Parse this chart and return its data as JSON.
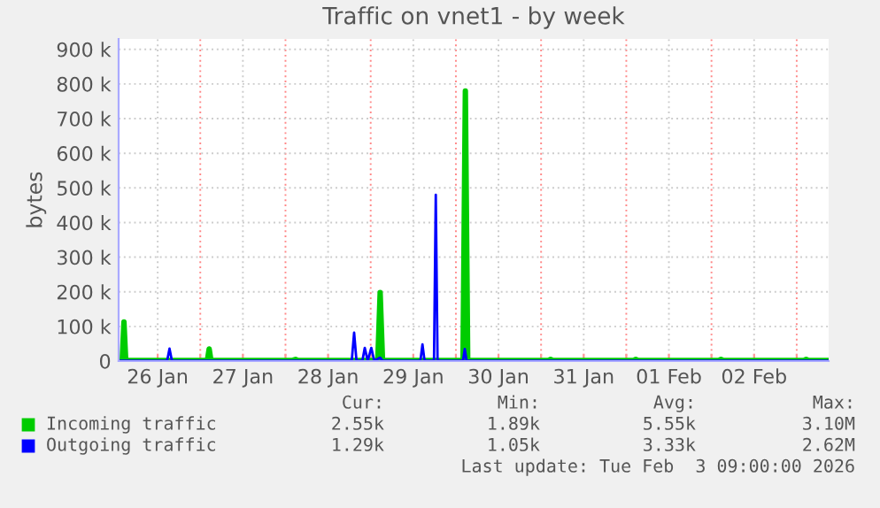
{
  "chart_data": {
    "type": "line",
    "title": "Traffic on vnet1 - by week",
    "ylabel": "bytes",
    "xlim": [
      "2026-01-26T01:00",
      "2026-02-03T09:00"
    ],
    "xticks": [
      {
        "value": "2026-01-26T12:00",
        "label": "26 Jan"
      },
      {
        "value": "2026-01-27T00:00",
        "label": null
      },
      {
        "value": "2026-01-27T12:00",
        "label": "27 Jan"
      },
      {
        "value": "2026-01-28T00:00",
        "label": null
      },
      {
        "value": "2026-01-28T12:00",
        "label": "28 Jan"
      },
      {
        "value": "2026-01-29T00:00",
        "label": null
      },
      {
        "value": "2026-01-29T12:00",
        "label": "29 Jan"
      },
      {
        "value": "2026-01-30T00:00",
        "label": null
      },
      {
        "value": "2026-01-30T12:00",
        "label": "30 Jan"
      },
      {
        "value": "2026-01-31T00:00",
        "label": null
      },
      {
        "value": "2026-01-31T12:00",
        "label": "31 Jan"
      },
      {
        "value": "2026-02-01T00:00",
        "label": null
      },
      {
        "value": "2026-02-01T12:00",
        "label": "01 Feb"
      },
      {
        "value": "2026-02-02T00:00",
        "label": null
      },
      {
        "value": "2026-02-02T12:00",
        "label": "02 Feb"
      },
      {
        "value": "2026-02-03T00:00",
        "label": null
      }
    ],
    "ylim": [
      0,
      930000
    ],
    "yticks": [
      0,
      {
        "value": 100000,
        "label": "100 k"
      },
      {
        "value": 200000,
        "label": "200 k"
      },
      {
        "value": 300000,
        "label": "300 k"
      },
      {
        "value": 400000,
        "label": "400 k"
      },
      {
        "value": 500000,
        "label": "500 k"
      },
      {
        "value": 600000,
        "label": "600 k"
      },
      {
        "value": 700000,
        "label": "700 k"
      },
      {
        "value": 800000,
        "label": "800 k"
      },
      {
        "value": 900000,
        "label": "900 k"
      }
    ],
    "grid": true,
    "legend": "bottom",
    "series": [
      {
        "name": "Incoming traffic",
        "color": "#00cc00",
        "x": [
          "2026-01-26T01:00",
          "2026-01-26T02:00",
          "2026-01-26T02:30",
          "2026-01-26T03:00",
          "2026-01-27T02:00",
          "2026-01-27T02:30",
          "2026-01-27T03:00",
          "2026-01-28T02:00",
          "2026-01-28T02:50",
          "2026-01-28T03:30",
          "2026-01-29T02:00",
          "2026-01-29T02:40",
          "2026-01-29T03:20",
          "2026-01-30T02:00",
          "2026-01-30T02:40",
          "2026-01-30T03:20",
          "2026-01-31T02:00",
          "2026-01-31T02:40",
          "2026-01-31T03:20",
          "2026-02-01T02:00",
          "2026-02-01T02:40",
          "2026-02-01T03:20",
          "2026-02-02T02:00",
          "2026-02-02T02:40",
          "2026-02-02T03:20",
          "2026-02-03T02:00",
          "2026-02-03T02:40",
          "2026-02-03T03:20",
          "2026-02-03T09:00"
        ],
        "values": [
          2000,
          2000,
          113000,
          2000,
          2000,
          35000,
          2000,
          2000,
          5000,
          2000,
          2000,
          198000,
          2000,
          2000,
          780000,
          2000,
          2000,
          5000,
          2000,
          2000,
          5000,
          2000,
          2000,
          5000,
          2000,
          2000,
          5000,
          2000,
          2000
        ]
      },
      {
        "name": "Outgoing traffic",
        "color": "#0000ff",
        "x": [
          "2026-01-26T01:00",
          "2026-01-26T14:40",
          "2026-01-26T15:20",
          "2026-01-26T16:00",
          "2026-01-28T18:40",
          "2026-01-28T19:20",
          "2026-01-28T20:00",
          "2026-01-28T21:40",
          "2026-01-28T22:20",
          "2026-01-28T23:10",
          "2026-01-29T00:10",
          "2026-01-29T01:00",
          "2026-01-29T02:40",
          "2026-01-29T03:20",
          "2026-01-29T14:00",
          "2026-01-29T14:35",
          "2026-01-29T15:10",
          "2026-01-29T17:50",
          "2026-01-29T18:20",
          "2026-01-29T18:50",
          "2026-01-30T02:00",
          "2026-01-30T02:30",
          "2026-01-30T03:00",
          "2026-02-03T09:00"
        ],
        "values": [
          1000,
          1000,
          36000,
          1000,
          1000,
          82000,
          1000,
          1000,
          38000,
          1000,
          38000,
          1000,
          10000,
          1000,
          1000,
          48000,
          1000,
          1000,
          480000,
          1000,
          1000,
          35000,
          1000,
          1000
        ]
      }
    ],
    "annotations": [
      "Cur:",
      "Min:",
      "Avg:",
      "Max:",
      "2.55k",
      "1.89k",
      "5.55k",
      "3.10M",
      "1.29k",
      "1.05k",
      "3.33k",
      "2.62M",
      "Last update: Tue Feb  3 09:00:00 2026"
    ]
  }
}
